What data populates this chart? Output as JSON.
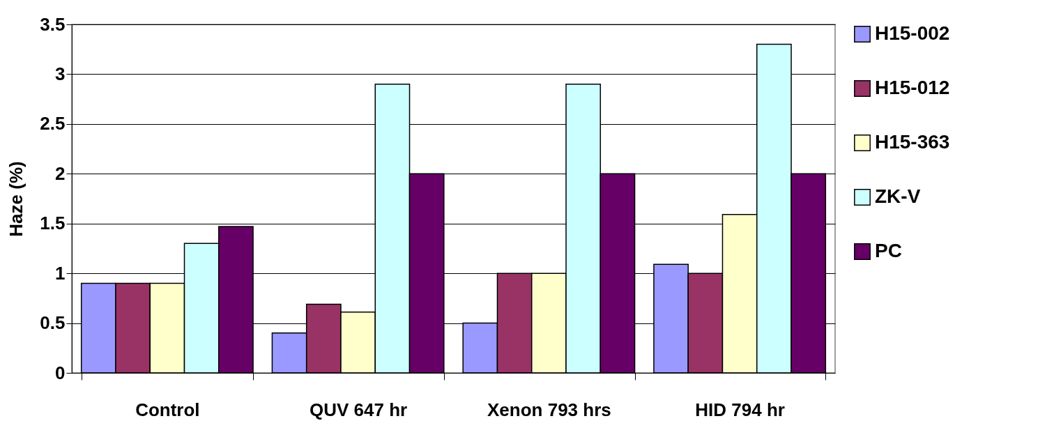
{
  "chart_data": {
    "type": "bar",
    "ylabel": "Haze (%)",
    "categories": [
      "Control",
      "QUV 647 hr",
      "Xenon 793 hrs",
      "HID 794 hr"
    ],
    "series": [
      {
        "name": "H15-002",
        "color": "#9999ff",
        "values": [
          0.9,
          0.4,
          0.5,
          1.09
        ]
      },
      {
        "name": "H15-012",
        "color": "#993366",
        "values": [
          0.9,
          0.69,
          1.0,
          1.0
        ]
      },
      {
        "name": "H15-363",
        "color": "#ffffcc",
        "values": [
          0.9,
          0.61,
          1.0,
          1.59
        ]
      },
      {
        "name": "ZK-V",
        "color": "#ccffff",
        "values": [
          1.3,
          2.9,
          2.9,
          3.3
        ]
      },
      {
        "name": "PC",
        "color": "#660066",
        "values": [
          1.47,
          2.0,
          2.0,
          2.0
        ]
      }
    ],
    "ylim": [
      0,
      3.5
    ],
    "yticks": [
      0,
      0.5,
      1,
      1.5,
      2,
      2.5,
      3,
      3.5
    ],
    "grid": "y",
    "legend": "right"
  }
}
